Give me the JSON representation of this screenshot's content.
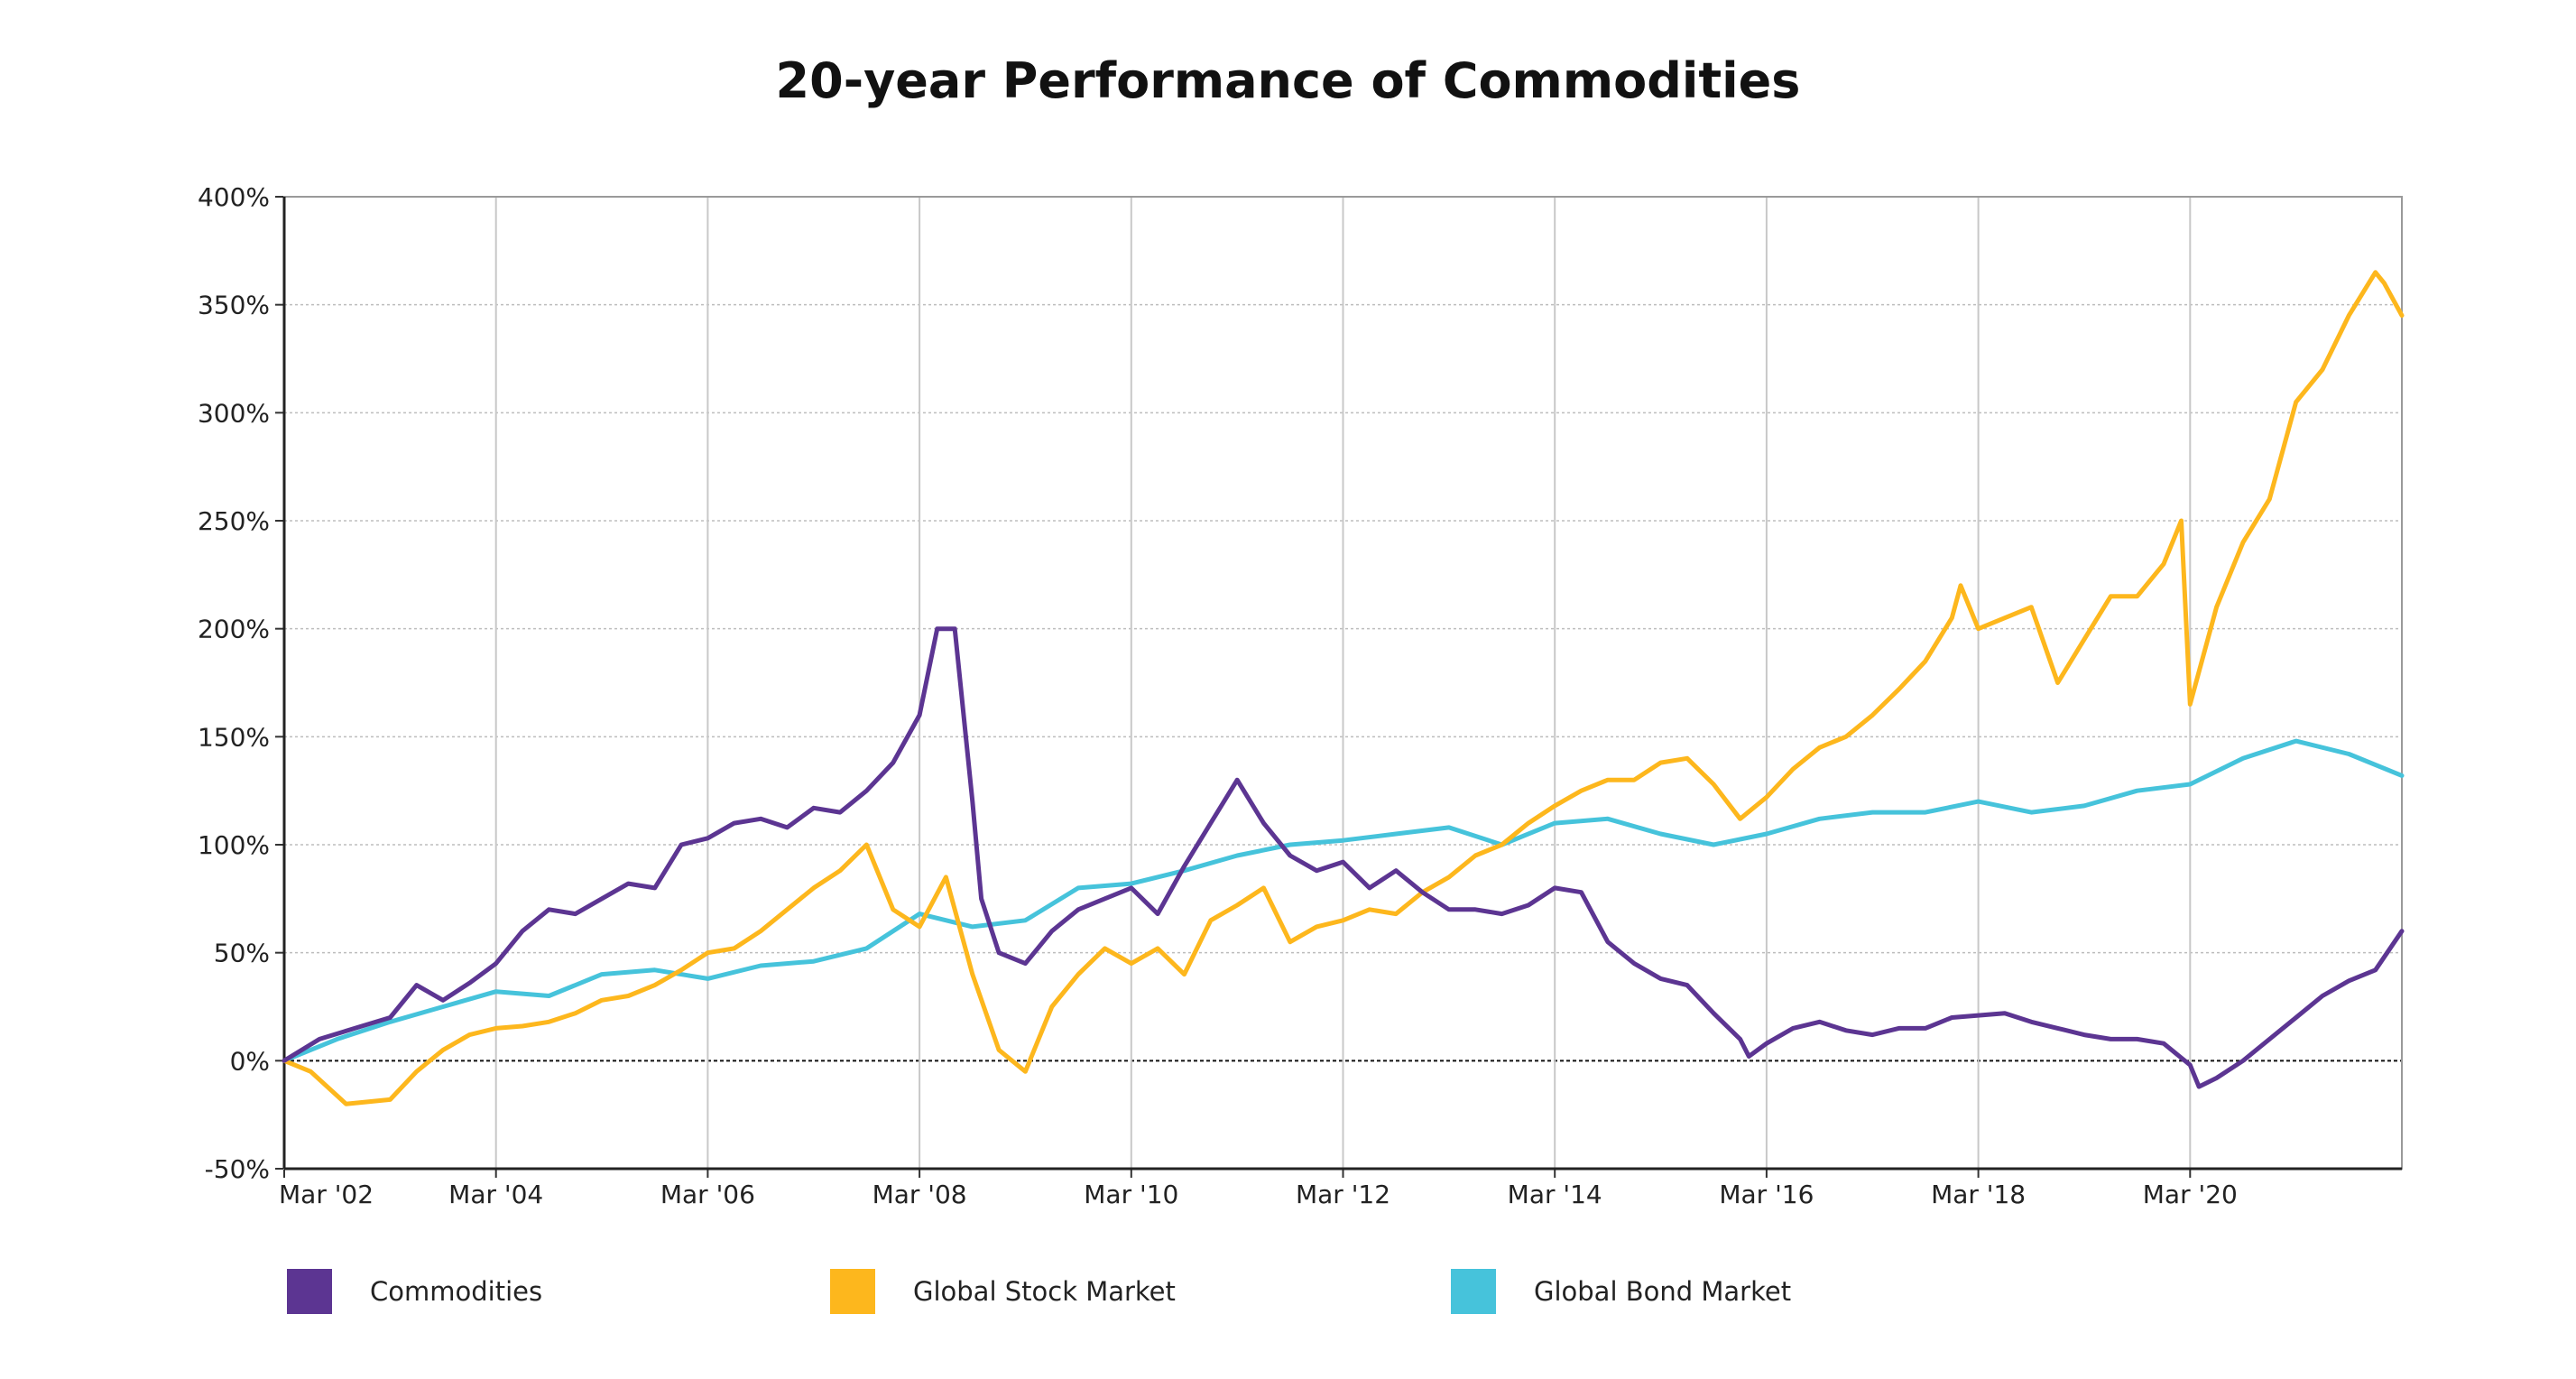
{
  "chart_data": {
    "type": "line",
    "title": "20-year Performance of Commodities",
    "xlabel": "",
    "ylabel": "",
    "x_ticks": [
      "Mar '02",
      "Mar '04",
      "Mar '06",
      "Mar '08",
      "Mar '10",
      "Mar '12",
      "Mar '14",
      "Mar '16",
      "Mar '18",
      "Mar '20"
    ],
    "y_ticks": [
      "-50%",
      "0%",
      "50%",
      "100%",
      "150%",
      "200%",
      "250%",
      "300%",
      "350%",
      "400%"
    ],
    "ylim": [
      -50,
      400
    ],
    "xlim": [
      "2002-03",
      "2022-03"
    ],
    "grid": true,
    "legend_position": "bottom",
    "series": [
      {
        "name": "Commodities",
        "color": "#5c3592",
        "x": [
          "2002-03",
          "2002-07",
          "2002-11",
          "2003-03",
          "2003-06",
          "2003-09",
          "2003-12",
          "2004-03",
          "2004-06",
          "2004-09",
          "2004-12",
          "2005-03",
          "2005-06",
          "2005-09",
          "2005-12",
          "2006-03",
          "2006-06",
          "2006-09",
          "2006-12",
          "2007-03",
          "2007-06",
          "2007-09",
          "2007-12",
          "2008-03",
          "2008-05",
          "2008-07",
          "2008-09",
          "2008-10",
          "2008-12",
          "2009-03",
          "2009-06",
          "2009-09",
          "2009-12",
          "2010-03",
          "2010-06",
          "2010-09",
          "2010-12",
          "2011-03",
          "2011-06",
          "2011-09",
          "2011-12",
          "2012-03",
          "2012-06",
          "2012-09",
          "2012-12",
          "2013-03",
          "2013-06",
          "2013-09",
          "2013-12",
          "2014-03",
          "2014-06",
          "2014-09",
          "2014-12",
          "2015-03",
          "2015-06",
          "2015-09",
          "2015-12",
          "2016-01",
          "2016-03",
          "2016-06",
          "2016-09",
          "2016-12",
          "2017-03",
          "2017-06",
          "2017-09",
          "2017-12",
          "2018-03",
          "2018-06",
          "2018-09",
          "2018-12",
          "2019-03",
          "2019-06",
          "2019-09",
          "2019-12",
          "2020-03",
          "2020-04",
          "2020-06",
          "2020-09",
          "2020-12",
          "2021-03",
          "2021-06",
          "2021-09",
          "2021-12",
          "2022-03"
        ],
        "values": [
          0,
          10,
          15,
          20,
          35,
          28,
          36,
          45,
          60,
          70,
          68,
          75,
          82,
          80,
          100,
          103,
          110,
          112,
          108,
          117,
          115,
          125,
          138,
          160,
          200,
          200,
          120,
          75,
          50,
          45,
          60,
          70,
          75,
          80,
          68,
          90,
          110,
          130,
          110,
          95,
          88,
          92,
          80,
          88,
          78,
          70,
          70,
          68,
          72,
          80,
          78,
          55,
          45,
          38,
          35,
          22,
          10,
          2,
          8,
          15,
          18,
          14,
          12,
          15,
          15,
          20,
          21,
          22,
          18,
          15,
          12,
          10,
          10,
          8,
          -2,
          -12,
          -8,
          0,
          10,
          20,
          30,
          37,
          42,
          60
        ]
      },
      {
        "name": "Global Stock Market",
        "color": "#fdb71d",
        "x": [
          "2002-03",
          "2002-06",
          "2002-10",
          "2003-03",
          "2003-06",
          "2003-09",
          "2003-12",
          "2004-03",
          "2004-06",
          "2004-09",
          "2004-12",
          "2005-03",
          "2005-06",
          "2005-09",
          "2005-12",
          "2006-03",
          "2006-06",
          "2006-09",
          "2006-12",
          "2007-03",
          "2007-06",
          "2007-09",
          "2007-12",
          "2008-03",
          "2008-06",
          "2008-09",
          "2008-12",
          "2009-03",
          "2009-06",
          "2009-09",
          "2009-12",
          "2010-03",
          "2010-06",
          "2010-09",
          "2010-12",
          "2011-03",
          "2011-06",
          "2011-09",
          "2011-12",
          "2012-03",
          "2012-06",
          "2012-09",
          "2012-12",
          "2013-03",
          "2013-06",
          "2013-09",
          "2013-12",
          "2014-03",
          "2014-06",
          "2014-09",
          "2014-12",
          "2015-03",
          "2015-06",
          "2015-09",
          "2015-12",
          "2016-03",
          "2016-06",
          "2016-09",
          "2016-12",
          "2017-03",
          "2017-06",
          "2017-09",
          "2017-12",
          "2018-01",
          "2018-03",
          "2018-06",
          "2018-09",
          "2018-12",
          "2019-03",
          "2019-06",
          "2019-09",
          "2019-12",
          "2020-02",
          "2020-03",
          "2020-06",
          "2020-09",
          "2020-12",
          "2021-03",
          "2021-06",
          "2021-09",
          "2021-12",
          "2022-01",
          "2022-03"
        ],
        "values": [
          0,
          -5,
          -20,
          -18,
          -5,
          5,
          12,
          15,
          16,
          18,
          22,
          28,
          30,
          35,
          42,
          50,
          52,
          60,
          70,
          80,
          88,
          100,
          70,
          62,
          85,
          40,
          5,
          -5,
          25,
          40,
          52,
          45,
          52,
          40,
          65,
          72,
          80,
          55,
          62,
          65,
          70,
          68,
          78,
          85,
          95,
          100,
          110,
          118,
          125,
          130,
          130,
          138,
          140,
          128,
          112,
          122,
          135,
          145,
          150,
          160,
          172,
          185,
          205,
          220,
          200,
          205,
          210,
          175,
          195,
          215,
          215,
          230,
          250,
          165,
          210,
          240,
          260,
          305,
          320,
          345,
          365,
          360,
          345
        ]
      },
      {
        "name": "Global Bond Market",
        "color": "#46c3db",
        "x": [
          "2002-03",
          "2002-09",
          "2003-03",
          "2003-09",
          "2004-03",
          "2004-09",
          "2005-03",
          "2005-09",
          "2006-03",
          "2006-09",
          "2007-03",
          "2007-09",
          "2008-03",
          "2008-09",
          "2009-03",
          "2009-09",
          "2010-03",
          "2010-09",
          "2011-03",
          "2011-09",
          "2012-03",
          "2012-09",
          "2013-03",
          "2013-09",
          "2014-03",
          "2014-09",
          "2015-03",
          "2015-09",
          "2016-03",
          "2016-09",
          "2017-03",
          "2017-09",
          "2018-03",
          "2018-09",
          "2019-03",
          "2019-09",
          "2020-03",
          "2020-09",
          "2021-03",
          "2021-09",
          "2022-03"
        ],
        "values": [
          0,
          10,
          18,
          25,
          32,
          30,
          40,
          42,
          38,
          44,
          46,
          52,
          68,
          62,
          65,
          80,
          82,
          88,
          95,
          100,
          102,
          105,
          108,
          100,
          110,
          112,
          105,
          100,
          105,
          112,
          115,
          115,
          120,
          115,
          118,
          125,
          128,
          140,
          148,
          142,
          132
        ]
      }
    ]
  },
  "legend": {
    "items": [
      {
        "label": "Commodities",
        "color": "#5c3592"
      },
      {
        "label": "Global Stock Market",
        "color": "#fdb71d"
      },
      {
        "label": "Global Bond Market",
        "color": "#46c3db"
      }
    ]
  }
}
